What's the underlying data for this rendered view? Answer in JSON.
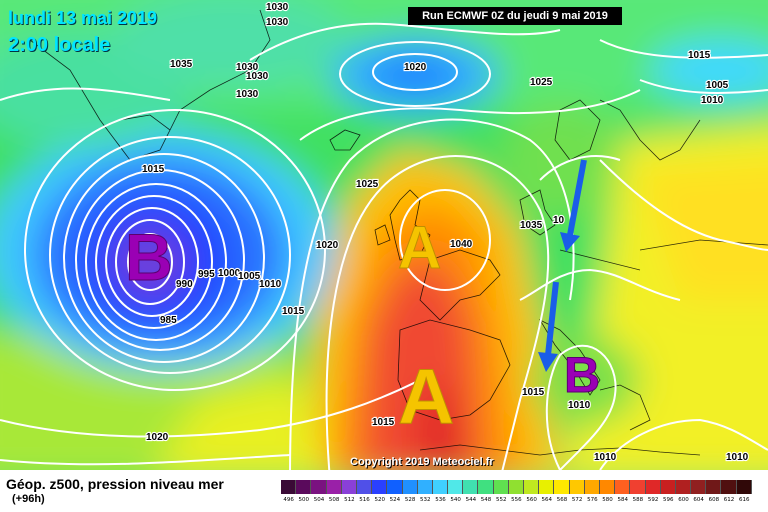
{
  "header": {
    "date": "lundi 13 mai 2019",
    "time": "2:00 locale",
    "run": "Run ECMWF 0Z du jeudi 9 mai 2019"
  },
  "copyright": "Copyright 2019 Meteociel.fr",
  "systems": [
    {
      "id": "low-atlantic",
      "letter": "B",
      "color": "#9a00b4"
    },
    {
      "id": "high-britain",
      "letter": "A",
      "color": "#f5c400"
    },
    {
      "id": "high-iberia",
      "letter": "A",
      "color": "#f5c400"
    },
    {
      "id": "low-italy",
      "letter": "B",
      "color": "#9a00b4"
    }
  ],
  "pressure_labels": [
    "1030",
    "1030",
    "1035",
    "1030",
    "1030",
    "1030",
    "1020",
    "1025",
    "1015",
    "1005",
    "1010",
    "1015",
    "1025",
    "1020",
    "1040",
    "1035",
    "10",
    "995",
    "1000",
    "1005",
    "1010",
    "990",
    "985",
    "1015",
    "1015",
    "1010",
    "1015",
    "1010",
    "1020",
    "1010"
  ],
  "legend": {
    "title": "Géop. z500, pression niveau mer",
    "subtitle": "(+96h)",
    "scale": [
      "496",
      "500",
      "504",
      "508",
      "512",
      "516",
      "520",
      "524",
      "528",
      "532",
      "536",
      "540",
      "544",
      "548",
      "552",
      "556",
      "560",
      "564",
      "568",
      "572",
      "576",
      "580",
      "584",
      "588",
      "592",
      "596",
      "600",
      "604",
      "608",
      "612",
      "616"
    ],
    "colors": [
      "#3a0a36",
      "#5a0a5c",
      "#7a1280",
      "#9a20a8",
      "#8a40d8",
      "#5050e8",
      "#2a40ff",
      "#1060ff",
      "#2090ff",
      "#30b0ff",
      "#40d0ff",
      "#50e8e8",
      "#40e0b0",
      "#40e080",
      "#60e050",
      "#90e030",
      "#c0e820",
      "#e8f000",
      "#ffe800",
      "#ffc800",
      "#ffa800",
      "#ff8800",
      "#ff6020",
      "#f04030",
      "#e02828",
      "#c82020",
      "#b02020",
      "#902020",
      "#701818",
      "#501010",
      "#300808"
    ]
  }
}
